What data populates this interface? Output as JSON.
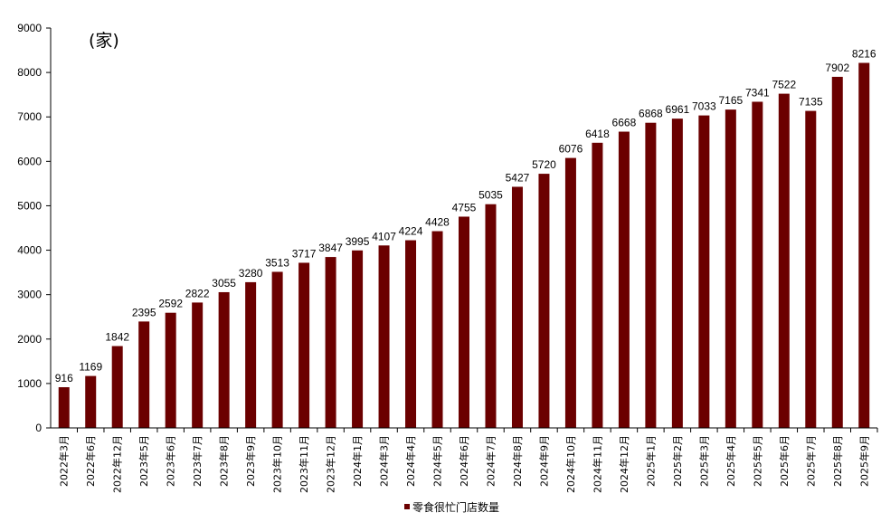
{
  "chart_data": {
    "type": "bar",
    "unit_label": "(家)",
    "categories": [
      "2022年3月",
      "2022年6月",
      "2022年12月",
      "2023年5月",
      "2023年6月",
      "2023年7月",
      "2023年8月",
      "2023年9月",
      "2023年10月",
      "2023年11月",
      "2023年12月",
      "2024年1月",
      "2024年3月",
      "2024年4月",
      "2024年5月",
      "2024年6月",
      "2024年7月",
      "2024年8月",
      "2024年9月",
      "2024年10月",
      "2024年11月",
      "2024年12月",
      "2025年1月",
      "2025年2月",
      "2025年3月",
      "2025年4月",
      "2025年5月",
      "2025年6月",
      "2025年7月",
      "2025年8月",
      "2025年9月"
    ],
    "series": [
      {
        "name": "零食很忙门店数量",
        "color": "#6b0000",
        "values": [
          916,
          1169,
          1842,
          2395,
          2592,
          2822,
          3055,
          3280,
          3513,
          3717,
          3847,
          3995,
          4107,
          4224,
          4428,
          4755,
          5035,
          5427,
          5720,
          6076,
          6418,
          6668,
          6868,
          6961,
          7033,
          7165,
          7341,
          7522,
          7135,
          7902,
          8216
        ]
      }
    ],
    "ylim": [
      0,
      9000
    ],
    "yticks": [
      0,
      1000,
      2000,
      3000,
      4000,
      5000,
      6000,
      7000,
      8000,
      9000
    ],
    "grid": false,
    "legend_position": "bottom"
  }
}
